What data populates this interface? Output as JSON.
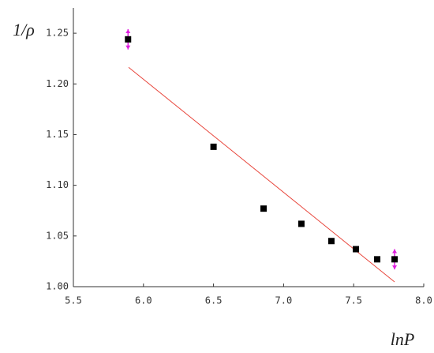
{
  "chart_data": {
    "type": "scatter",
    "x_label": "lnP",
    "y_label": "1/ρ",
    "x": [
      5.89,
      6.5,
      6.857,
      7.127,
      7.341,
      7.516,
      7.668,
      7.792
    ],
    "series": [
      {
        "color": "#000000",
        "values": [
          1.244,
          1.138,
          1.077,
          1.062,
          1.045,
          1.037,
          1.027,
          1.027
        ],
        "errors": [
          0.01,
          null,
          null,
          null,
          null,
          null,
          null,
          0.01
        ],
        "error_color": "#e020e0"
      }
    ],
    "fit": {
      "color": "#e8463c",
      "x": [
        5.894,
        7.792
      ],
      "values": [
        1.2164,
        1.0047
      ]
    },
    "xlim": [
      5.5,
      8.0
    ],
    "ylim": [
      1.0,
      1.275
    ],
    "xticks": [
      5.5,
      {
        "value": 6,
        "label": "6.0"
      },
      6.5,
      {
        "value": 7,
        "label": "7.0"
      },
      7.5,
      {
        "value": 8,
        "label": "8.0"
      }
    ],
    "yticks": [
      {
        "value": 1,
        "label": "1.00"
      },
      1.05,
      {
        "value": 1.1,
        "label": "1.10"
      },
      1.15,
      {
        "value": 1.2,
        "label": "1.20"
      },
      1.25
    ]
  }
}
